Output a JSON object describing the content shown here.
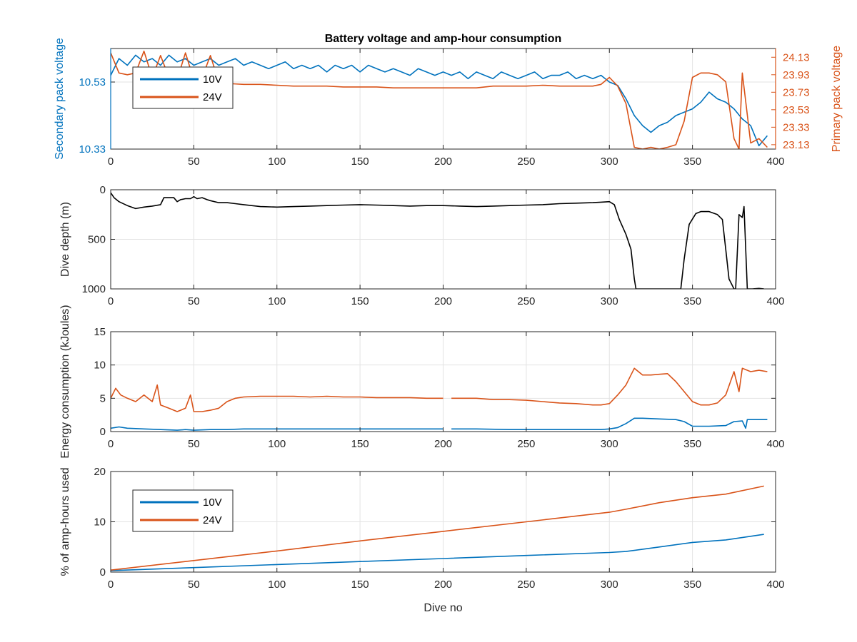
{
  "chart_data": [
    {
      "type": "line",
      "title": "Battery voltage and amp-hour consumption",
      "xlabel": "",
      "ylabel": "Secondary pack voltage",
      "ylabel_right": "Primary pack voltage",
      "xlim": [
        0,
        400
      ],
      "x_ticks": [
        "0",
        "50",
        "100",
        "150",
        "200",
        "250",
        "300",
        "350",
        "400"
      ],
      "ylim": [
        10.33,
        10.63
      ],
      "y_ticks": [
        "10.33",
        "10.53"
      ],
      "ylim_right": [
        23.08,
        24.23
      ],
      "y_ticks_right": [
        "23.13",
        "23.33",
        "23.53",
        "23.73",
        "23.93",
        "24.13"
      ],
      "grid": true,
      "legend": {
        "placement": "top-left",
        "entries": [
          "10V",
          "24V"
        ]
      },
      "series": [
        {
          "name": "10V",
          "axis": "left",
          "color": "#0072BD",
          "x": [
            0,
            5,
            10,
            15,
            20,
            25,
            30,
            35,
            40,
            45,
            50,
            55,
            60,
            65,
            70,
            75,
            80,
            85,
            90,
            95,
            100,
            105,
            110,
            115,
            120,
            125,
            130,
            135,
            140,
            145,
            150,
            155,
            160,
            165,
            170,
            175,
            180,
            185,
            190,
            195,
            200,
            205,
            210,
            215,
            220,
            225,
            230,
            235,
            240,
            245,
            250,
            255,
            260,
            265,
            270,
            275,
            280,
            285,
            290,
            295,
            300,
            305,
            310,
            315,
            320,
            325,
            330,
            335,
            340,
            345,
            350,
            355,
            360,
            365,
            370,
            375,
            380,
            385,
            390,
            395
          ],
          "y": [
            10.55,
            10.6,
            10.58,
            10.61,
            10.59,
            10.6,
            10.58,
            10.61,
            10.59,
            10.6,
            10.58,
            10.59,
            10.6,
            10.58,
            10.59,
            10.6,
            10.58,
            10.59,
            10.58,
            10.57,
            10.58,
            10.59,
            10.57,
            10.58,
            10.57,
            10.58,
            10.56,
            10.58,
            10.57,
            10.58,
            10.56,
            10.58,
            10.57,
            10.56,
            10.57,
            10.56,
            10.55,
            10.57,
            10.56,
            10.55,
            10.56,
            10.55,
            10.56,
            10.54,
            10.56,
            10.55,
            10.54,
            10.56,
            10.55,
            10.54,
            10.55,
            10.56,
            10.54,
            10.55,
            10.55,
            10.56,
            10.54,
            10.55,
            10.54,
            10.55,
            10.53,
            10.52,
            10.48,
            10.43,
            10.4,
            10.38,
            10.4,
            10.41,
            10.43,
            10.44,
            10.45,
            10.47,
            10.5,
            10.48,
            10.47,
            10.45,
            10.42,
            10.4,
            10.34,
            10.37
          ]
        },
        {
          "name": "24V",
          "axis": "right",
          "color": "#D95319",
          "x": [
            0,
            5,
            10,
            15,
            20,
            25,
            30,
            35,
            40,
            45,
            50,
            55,
            60,
            65,
            70,
            80,
            90,
            100,
            110,
            120,
            130,
            140,
            150,
            160,
            170,
            180,
            190,
            200,
            210,
            220,
            230,
            240,
            250,
            260,
            270,
            280,
            290,
            295,
            300,
            305,
            310,
            315,
            320,
            325,
            330,
            335,
            340,
            345,
            350,
            355,
            360,
            365,
            370,
            375,
            378,
            380,
            385,
            390,
            395
          ],
          "y": [
            24.18,
            23.95,
            23.93,
            23.95,
            24.2,
            23.9,
            24.15,
            23.9,
            23.88,
            24.18,
            23.87,
            23.9,
            24.15,
            23.85,
            23.83,
            23.82,
            23.82,
            23.81,
            23.8,
            23.8,
            23.8,
            23.79,
            23.79,
            23.79,
            23.78,
            23.78,
            23.78,
            23.78,
            23.78,
            23.78,
            23.8,
            23.8,
            23.8,
            23.81,
            23.8,
            23.8,
            23.8,
            23.82,
            23.9,
            23.8,
            23.6,
            23.1,
            23.08,
            23.1,
            23.08,
            23.1,
            23.13,
            23.4,
            23.9,
            23.95,
            23.95,
            23.93,
            23.85,
            23.2,
            23.08,
            23.95,
            23.15,
            23.2,
            23.1
          ]
        }
      ]
    },
    {
      "type": "line",
      "xlabel": "",
      "ylabel": "Dive depth (m)",
      "xlim": [
        0,
        400
      ],
      "x_ticks": [
        "0",
        "50",
        "100",
        "150",
        "200",
        "250",
        "300",
        "350",
        "400"
      ],
      "ylim": [
        0,
        1000
      ],
      "y_reversed": true,
      "y_ticks": [
        "0",
        "500",
        "1000"
      ],
      "grid": true,
      "series": [
        {
          "color": "#000000",
          "x": [
            0,
            2,
            5,
            10,
            15,
            20,
            25,
            30,
            32,
            35,
            38,
            40,
            42,
            45,
            48,
            50,
            52,
            55,
            58,
            60,
            65,
            70,
            75,
            80,
            90,
            100,
            110,
            120,
            130,
            140,
            150,
            160,
            170,
            180,
            190,
            200,
            210,
            220,
            230,
            240,
            250,
            260,
            270,
            280,
            290,
            295,
            300,
            303,
            306,
            310,
            313,
            315,
            316,
            320,
            330,
            340,
            343,
            345,
            348,
            352,
            355,
            360,
            365,
            368,
            370,
            372,
            375,
            376,
            378,
            380,
            381,
            383,
            384,
            385,
            386,
            390,
            393
          ],
          "y": [
            30,
            80,
            120,
            160,
            190,
            175,
            165,
            150,
            80,
            80,
            80,
            120,
            100,
            90,
            90,
            70,
            90,
            80,
            100,
            110,
            130,
            130,
            140,
            150,
            170,
            175,
            170,
            165,
            160,
            155,
            150,
            155,
            160,
            165,
            160,
            160,
            165,
            170,
            165,
            160,
            155,
            150,
            140,
            135,
            130,
            125,
            120,
            150,
            300,
            450,
            600,
            900,
            1000,
            1000,
            1000,
            1000,
            1000,
            700,
            350,
            240,
            220,
            220,
            250,
            300,
            600,
            900,
            1000,
            1000,
            250,
            280,
            170,
            1000,
            1000,
            1000,
            1000,
            995,
            1000
          ]
        }
      ]
    },
    {
      "type": "line",
      "xlabel": "",
      "ylabel": "Energy consumption (kJoules)",
      "xlim": [
        0,
        400
      ],
      "x_ticks": [
        "0",
        "50",
        "100",
        "150",
        "200",
        "250",
        "300",
        "350",
        "400"
      ],
      "ylim": [
        0,
        15
      ],
      "y_ticks": [
        "0",
        "5",
        "10",
        "15"
      ],
      "grid": true,
      "series": [
        {
          "color": "#D95319",
          "x": [
            0,
            3,
            6,
            10,
            15,
            20,
            25,
            28,
            30,
            35,
            40,
            45,
            48,
            50,
            55,
            60,
            65,
            70,
            75,
            80,
            90,
            100,
            110,
            120,
            130,
            140,
            150,
            160,
            170,
            180,
            190,
            200,
            201,
            205,
            210,
            220,
            230,
            240,
            250,
            260,
            270,
            280,
            290,
            295,
            300,
            305,
            310,
            315,
            320,
            325,
            330,
            335,
            340,
            345,
            350,
            355,
            360,
            365,
            370,
            375,
            378,
            380,
            385,
            390,
            395
          ],
          "y": [
            5,
            6.5,
            5.5,
            5,
            4.5,
            5.5,
            4.5,
            7,
            4,
            3.5,
            3,
            3.5,
            5.5,
            3,
            3,
            3.2,
            3.5,
            4.5,
            5,
            5.2,
            5.3,
            5.3,
            5.3,
            5.2,
            5.3,
            5.2,
            5.2,
            5.1,
            5.1,
            5.1,
            5.0,
            5.0,
            null,
            5.0,
            5.0,
            5.0,
            4.8,
            4.8,
            4.7,
            4.5,
            4.3,
            4.2,
            4.0,
            4.0,
            4.2,
            5.5,
            7.0,
            9.5,
            8.5,
            8.5,
            8.6,
            8.7,
            7.5,
            6.0,
            4.5,
            4.0,
            4.0,
            4.3,
            5.5,
            9.0,
            6.0,
            9.5,
            9.0,
            9.2,
            9.0
          ]
        },
        {
          "color": "#0072BD",
          "x": [
            0,
            5,
            10,
            20,
            30,
            40,
            45,
            50,
            60,
            70,
            80,
            100,
            120,
            140,
            160,
            180,
            200,
            201,
            205,
            220,
            240,
            260,
            280,
            295,
            300,
            305,
            310,
            315,
            320,
            330,
            340,
            345,
            350,
            360,
            370,
            375,
            380,
            382,
            383,
            385,
            390,
            395
          ],
          "y": [
            0.5,
            0.7,
            0.5,
            0.4,
            0.3,
            0.2,
            0.3,
            0.2,
            0.3,
            0.3,
            0.4,
            0.4,
            0.4,
            0.4,
            0.4,
            0.4,
            0.4,
            null,
            0.4,
            0.4,
            0.3,
            0.3,
            0.3,
            0.3,
            0.4,
            0.6,
            1.2,
            2.0,
            2.0,
            1.9,
            1.8,
            1.5,
            0.8,
            0.8,
            0.9,
            1.5,
            1.6,
            0.5,
            1.8,
            1.8,
            1.8,
            1.8
          ]
        }
      ]
    },
    {
      "type": "line",
      "xlabel": "Dive no",
      "ylabel": "% of amp-hours used",
      "xlim": [
        0,
        400
      ],
      "x_ticks": [
        "0",
        "50",
        "100",
        "150",
        "200",
        "250",
        "300",
        "350",
        "400"
      ],
      "ylim": [
        0,
        20
      ],
      "y_ticks": [
        "0",
        "10",
        "20"
      ],
      "grid": true,
      "legend": {
        "placement": "top-left",
        "entries": [
          "10V",
          "24V"
        ]
      },
      "series": [
        {
          "name": "10V",
          "color": "#0072BD",
          "x": [
            0,
            50,
            100,
            150,
            200,
            250,
            300,
            310,
            330,
            350,
            370,
            393
          ],
          "y": [
            0.3,
            0.9,
            1.5,
            2.1,
            2.7,
            3.3,
            3.9,
            4.1,
            5.0,
            5.9,
            6.4,
            7.5
          ]
        },
        {
          "name": "24V",
          "color": "#D95319",
          "x": [
            0,
            50,
            100,
            150,
            200,
            250,
            300,
            310,
            330,
            350,
            370,
            393
          ],
          "y": [
            0.4,
            2.3,
            4.2,
            6.2,
            8.1,
            10.0,
            11.9,
            12.5,
            13.8,
            14.8,
            15.5,
            17.1
          ]
        }
      ]
    }
  ]
}
